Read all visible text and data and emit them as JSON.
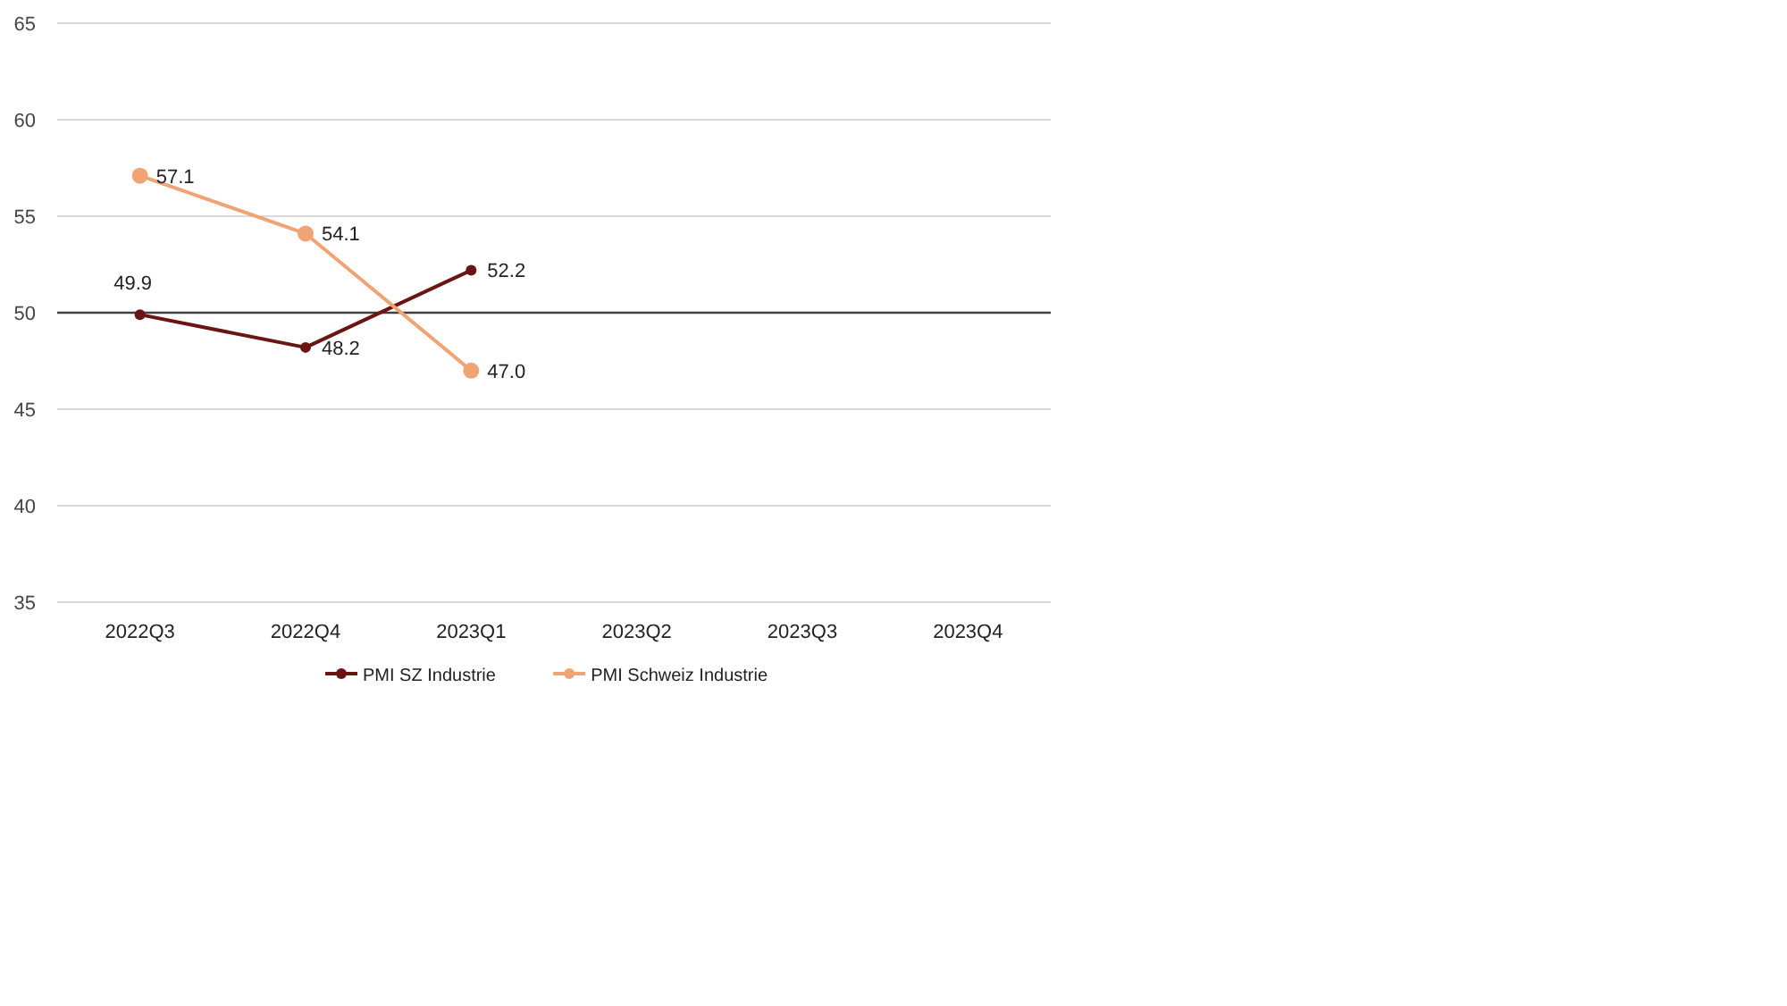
{
  "chart_data": {
    "type": "line",
    "categories": [
      "2022Q3",
      "2022Q4",
      "2023Q1",
      "2023Q2",
      "2023Q3",
      "2023Q4"
    ],
    "series": [
      {
        "name": "PMI SZ Industrie",
        "color": "#6b1414",
        "values": [
          49.9,
          48.2,
          52.2,
          null,
          null,
          null
        ],
        "value_labels": [
          "49.9",
          "48.2",
          "52.2",
          null,
          null,
          null
        ]
      },
      {
        "name": "PMI Schweiz Industrie",
        "color": "#f0a474",
        "values": [
          57.1,
          54.1,
          47.0,
          null,
          null,
          null
        ],
        "value_labels": [
          "57.1",
          "54.1",
          "47.0",
          null,
          null,
          null
        ]
      }
    ],
    "ylim": [
      35,
      65
    ],
    "yticks": [
      35,
      40,
      45,
      50,
      55,
      60,
      65
    ],
    "grid": "y",
    "marker": "circle",
    "legend": "bottom",
    "ref_lines": [
      {
        "axis": "y",
        "value": 50,
        "color": "#404040"
      }
    ]
  }
}
